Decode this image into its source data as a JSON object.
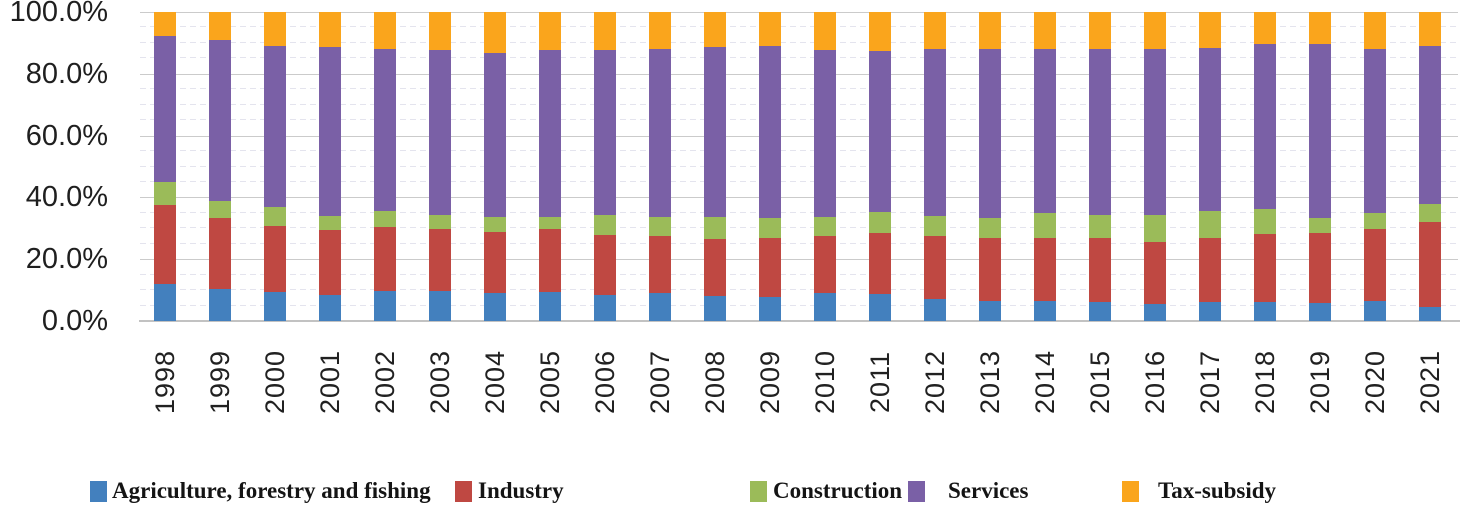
{
  "chart_data": {
    "type": "bar",
    "stacked": true,
    "percent_stacked": true,
    "title": "",
    "xlabel": "",
    "ylabel": "",
    "legend_position": "bottom",
    "grid": {
      "major": true,
      "minor": true
    },
    "y_axis": {
      "min": 0,
      "max": 100,
      "major_tick_step": 20,
      "minor_tick_step": 5,
      "tick_labels": [
        "0.0%",
        "20.0%",
        "40.0%",
        "60.0%",
        "80.0%",
        "100.0%"
      ]
    },
    "categories": [
      "1998",
      "1999",
      "2000",
      "2001",
      "2002",
      "2003",
      "2004",
      "2005",
      "2006",
      "2007",
      "2008",
      "2009",
      "2010",
      "2011",
      "2012",
      "2013",
      "2014",
      "2015",
      "2016",
      "2017",
      "2018",
      "2019",
      "2020",
      "2021"
    ],
    "series": [
      {
        "name": "Agriculture, forestry and fishing",
        "color": "#4380BE",
        "values": [
          12.0,
          10.3,
          9.5,
          8.4,
          9.8,
          9.8,
          9.2,
          9.5,
          8.4,
          9.2,
          8.1,
          7.9,
          9.0,
          8.6,
          7.1,
          6.6,
          6.6,
          6.3,
          5.5,
          6.3,
          6.3,
          5.9,
          6.5,
          4.6
        ]
      },
      {
        "name": "Industry",
        "color": "#BF4842",
        "values": [
          25.5,
          23.0,
          21.3,
          21.1,
          20.5,
          19.9,
          19.6,
          20.2,
          19.5,
          18.2,
          18.4,
          19.1,
          18.4,
          19.8,
          20.3,
          20.4,
          20.2,
          20.5,
          20.2,
          20.5,
          21.8,
          22.5,
          23.2,
          27.6
        ]
      },
      {
        "name": "Construction",
        "color": "#9BBB59",
        "values": [
          7.4,
          5.7,
          6.1,
          4.6,
          5.2,
          4.7,
          5.0,
          4.1,
          6.5,
          6.2,
          7.3,
          6.3,
          6.2,
          7.0,
          6.5,
          6.3,
          8.1,
          7.6,
          8.7,
          8.7,
          8.1,
          5.0,
          5.4,
          5.7
        ]
      },
      {
        "name": "Services",
        "color": "#7A60A6",
        "values": [
          47.3,
          51.9,
          52.1,
          54.5,
          52.6,
          53.3,
          53.0,
          53.9,
          53.3,
          54.3,
          55.0,
          55.7,
          54.1,
          52.0,
          54.0,
          54.6,
          53.2,
          53.7,
          53.7,
          52.9,
          53.3,
          56.4,
          53.0,
          51.1
        ]
      },
      {
        "name": "Tax-subsidy",
        "color": "#FAA51C",
        "values": [
          7.8,
          9.1,
          11.0,
          11.4,
          11.9,
          12.3,
          13.2,
          12.3,
          12.3,
          12.1,
          11.2,
          11.0,
          12.3,
          12.6,
          12.1,
          12.1,
          11.9,
          11.9,
          11.9,
          11.6,
          10.5,
          10.2,
          11.9,
          11.0
        ]
      }
    ]
  }
}
